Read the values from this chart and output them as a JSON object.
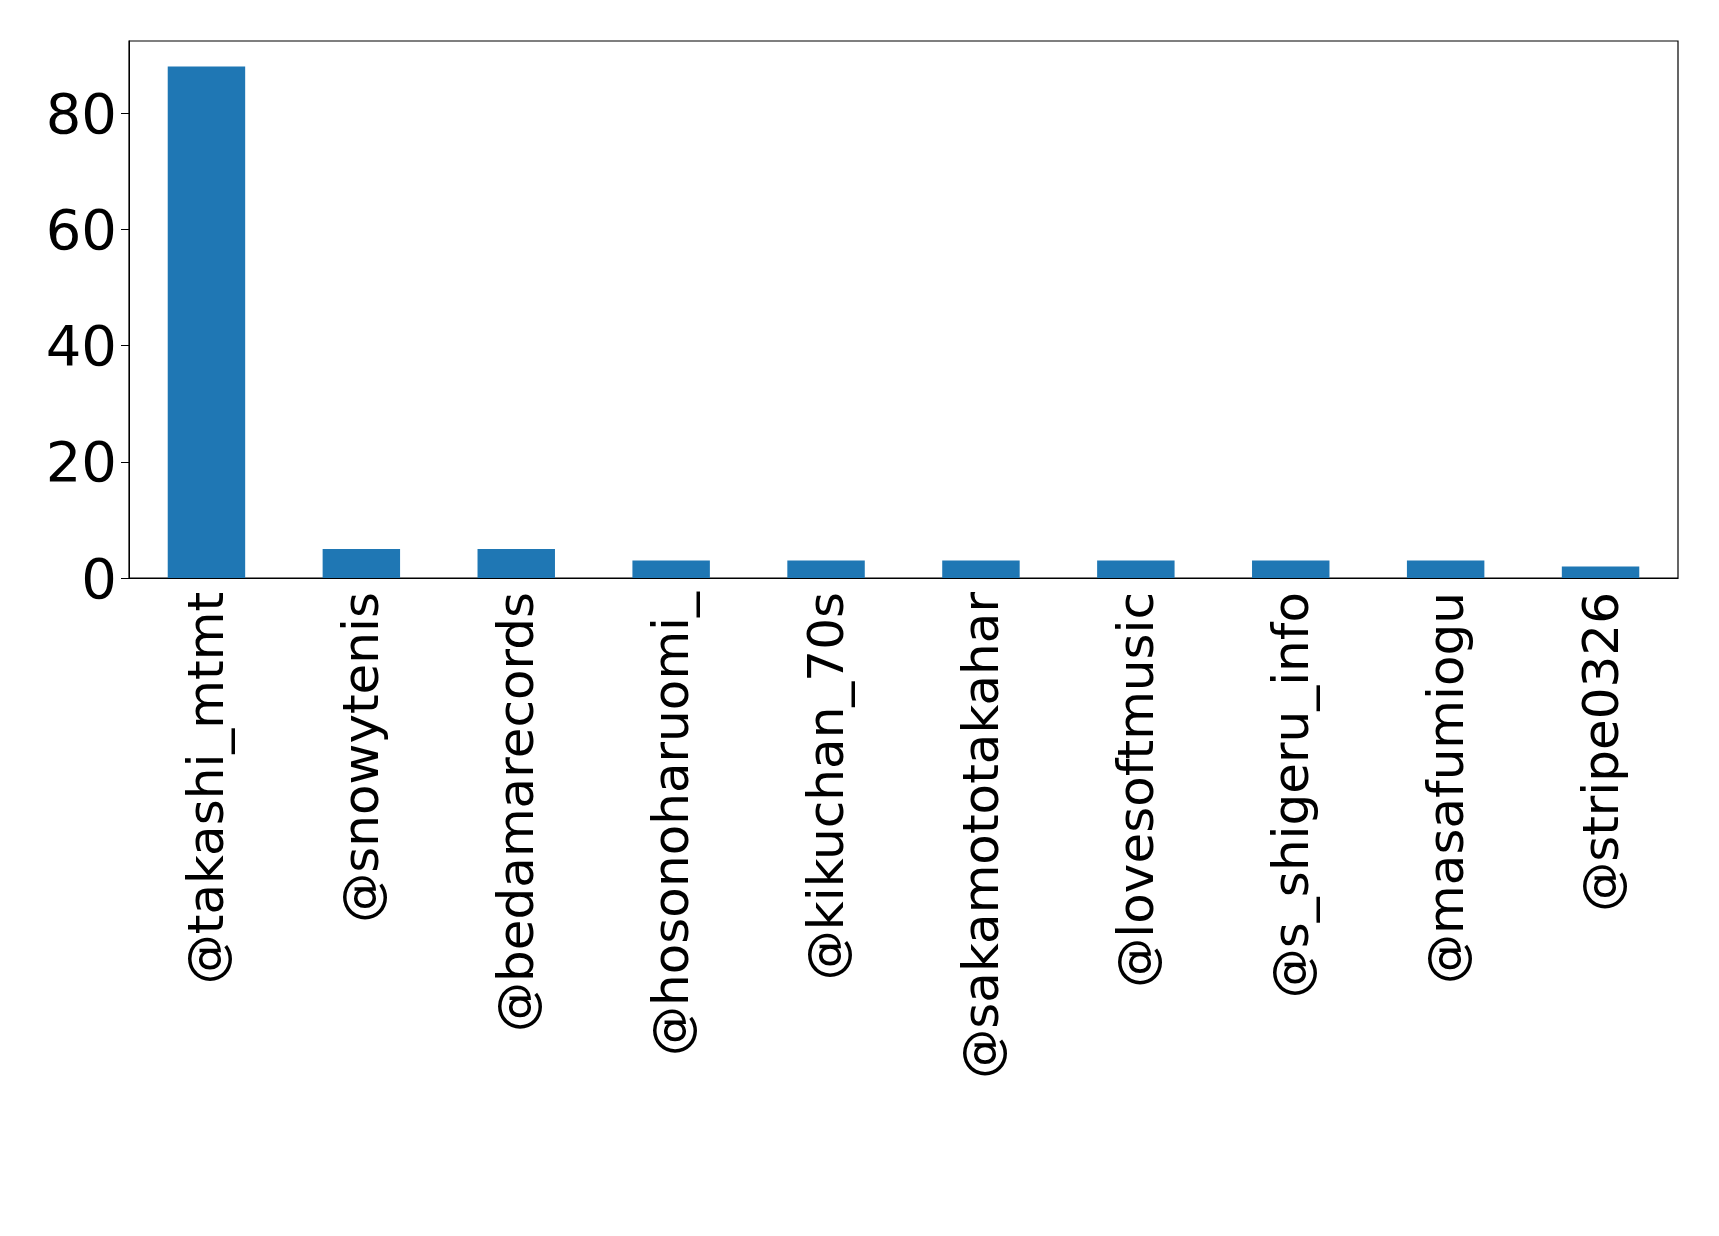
{
  "chart_data": {
    "type": "bar",
    "categories": [
      "@takashi_mtmt",
      "@snowytenis",
      "@bedamarecords",
      "@hosonoharuomi_",
      "@kikuchan_70s",
      "@sakamototakahar",
      "@lovesoftmusic",
      "@s_shigeru_info",
      "@masafumiogu",
      "@stripe0326"
    ],
    "values": [
      88,
      5,
      5,
      3,
      3,
      3,
      3,
      3,
      3,
      2
    ],
    "color": "#1f77b4",
    "ylim": [
      0,
      92.4
    ],
    "yticks": [
      0,
      20,
      40,
      60,
      80
    ],
    "grid": false
  }
}
